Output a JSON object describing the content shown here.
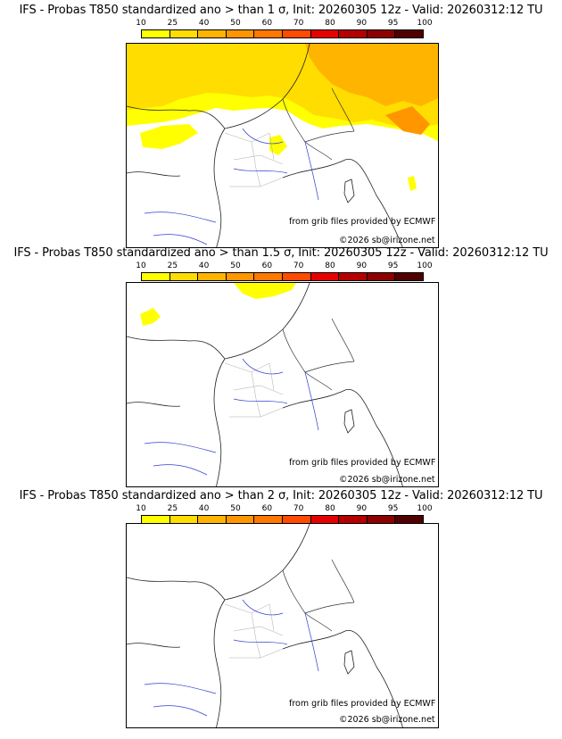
{
  "panels": [
    {
      "title": "IFS - Probas T850  standardized ano > than 1 σ, Init: 20260305 12z - Valid: 20260312:12 TU",
      "source_note": "from grib files provided by ECMWF",
      "copyright": "©2026 sb@irizone.net"
    },
    {
      "title": "IFS - Probas T850  standardized ano > than 1.5 σ, Init: 20260305 12z - Valid: 20260312:12 TU",
      "source_note": "from grib files provided by ECMWF",
      "copyright": "©2026 sb@irizone.net"
    },
    {
      "title": "IFS - Probas T850  standardized ano > than 2 σ, Init: 20260305 12z - Valid: 20260312:12 TU",
      "source_note": "from grib files provided by ECMWF",
      "copyright": "©2026 sb@irizone.net"
    }
  ],
  "scale": {
    "labels": [
      "10",
      "25",
      "40",
      "50",
      "60",
      "70",
      "80",
      "90",
      "95",
      "100"
    ],
    "colors": [
      "#ffff00",
      "#ffdd00",
      "#ffb400",
      "#ff9600",
      "#ff7800",
      "#ff4b00",
      "#e60000",
      "#b40000",
      "#8c0000",
      "#500000"
    ]
  }
}
